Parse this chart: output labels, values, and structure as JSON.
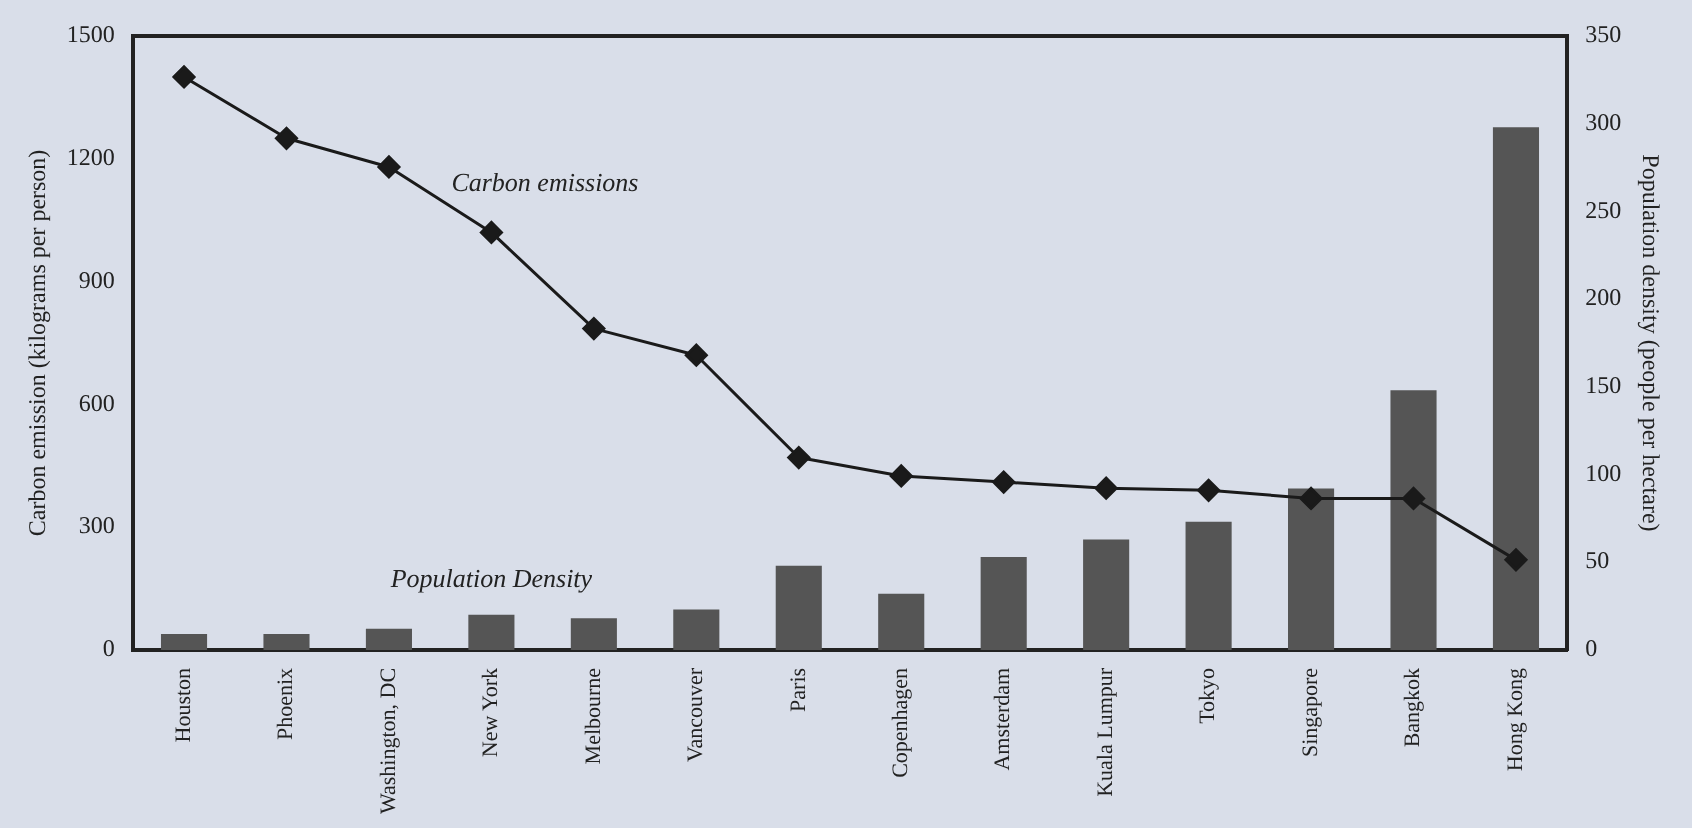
{
  "chart_data": {
    "type": "bar",
    "xlabel": null,
    "ylabel": "Carbon emission (kilograms per person)",
    "y2label": "Population density (people per hectare)",
    "categories": [
      "Houston",
      "Phoenix",
      "Washington, DC",
      "New York",
      "Melbourne",
      "Vancouver",
      "Paris",
      "Copenhagen",
      "Amsterdam",
      "Kuala Lumpur",
      "Tokyo",
      "Singapore",
      "Bangkok",
      "Hong Kong"
    ],
    "series": [
      {
        "name": "Population Density",
        "axis": "y2",
        "color": "#555555",
        "values": [
          9,
          9,
          12,
          20,
          18,
          23,
          48,
          32,
          53,
          63,
          73,
          92,
          148,
          298
        ]
      },
      {
        "name": "Carbon emissions",
        "type": "line",
        "color": "#1a1a1a",
        "marker": "diamond",
        "values": [
          1400,
          1250,
          1180,
          1020,
          785,
          720,
          470,
          425,
          410,
          395,
          390,
          370,
          370,
          220
        ]
      }
    ],
    "ylim": [
      0,
      1500
    ],
    "yticks": [
      0,
      300,
      600,
      900,
      1200,
      1500
    ],
    "y2lim": [
      0,
      350
    ],
    "y2ticks": [
      0,
      50,
      100,
      150,
      200,
      250,
      300,
      350
    ],
    "grid": false,
    "legend": false
  }
}
